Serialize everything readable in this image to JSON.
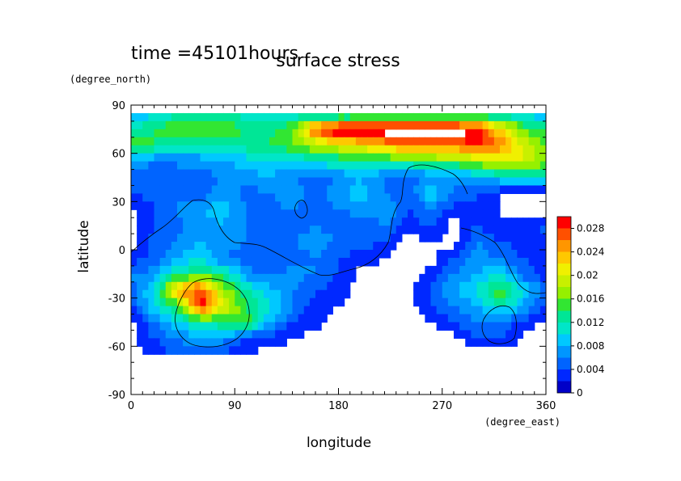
{
  "chart_data": {
    "type": "heatmap",
    "time_label": "time =45101hours",
    "title": "surface stress",
    "xlabel": "longitude",
    "ylabel": "latitude",
    "x_unit": "(degree_east)",
    "y_unit": "(degree_north)",
    "xlim": [
      0,
      360
    ],
    "ylim": [
      -90,
      90
    ],
    "x_ticks": [
      0,
      90,
      180,
      270,
      360
    ],
    "y_ticks": [
      -90,
      -60,
      -30,
      0,
      30,
      60,
      90
    ],
    "colorbar": {
      "range": [
        0,
        0.03
      ],
      "tick_values": [
        0,
        0.004,
        0.008,
        0.012,
        0.016,
        0.02,
        0.024,
        0.028
      ],
      "tick_labels": [
        "0",
        "0.004",
        "0.008",
        "0.012",
        "0.016",
        "0.02",
        "0.024",
        "0.028"
      ],
      "colors": [
        "#0000c8",
        "#0028ff",
        "#0064ff",
        "#0096ff",
        "#00c8ff",
        "#00e6c8",
        "#00e696",
        "#32e632",
        "#96f000",
        "#c8f000",
        "#f0f000",
        "#ffc800",
        "#ff9600",
        "#ff5000",
        "#ff0000"
      ]
    },
    "lat": [
      85,
      75,
      65,
      55,
      45,
      35,
      25,
      15,
      5,
      -5,
      -15,
      -25,
      -35,
      -45,
      -55,
      -65
    ],
    "lon": [
      0,
      20,
      40,
      60,
      80,
      100,
      120,
      140,
      160,
      180,
      200,
      220,
      240,
      260,
      280,
      300,
      320,
      340,
      360
    ],
    "values": [
      [
        0.007,
        0.01,
        0.011,
        0.012,
        0.012,
        0.011,
        0.01,
        0.01,
        0.009,
        0.008,
        0.008,
        0.009,
        0.009,
        0.01,
        0.01,
        0.01,
        0.01,
        0.009,
        0.008
      ],
      [
        0.012,
        0.014,
        0.016,
        0.017,
        0.016,
        0.014,
        0.013,
        0.016,
        0.028,
        0.032,
        0.032,
        0.032,
        0.032,
        0.032,
        0.032,
        0.03,
        0.022,
        0.016,
        0.013
      ],
      [
        0.016,
        0.014,
        0.012,
        0.011,
        0.012,
        0.013,
        0.014,
        0.016,
        0.018,
        0.02,
        0.022,
        0.024,
        0.026,
        0.026,
        0.026,
        0.028,
        0.026,
        0.02,
        0.016
      ],
      [
        0.008,
        0.006,
        0.006,
        0.007,
        0.008,
        0.009,
        0.01,
        0.01,
        0.011,
        0.012,
        0.012,
        0.013,
        0.014,
        0.015,
        0.016,
        0.018,
        0.02,
        0.02,
        0.016
      ],
      [
        0.005,
        0.005,
        0.006,
        0.005,
        0.006,
        0.007,
        0.008,
        0.006,
        0.005,
        0.006,
        0.008,
        0.006,
        0.005,
        0.006,
        0.006,
        0.008,
        0.01,
        0.012,
        0.012
      ],
      [
        0.004,
        0.005,
        0.006,
        0.004,
        0.008,
        0.005,
        0.006,
        0.008,
        0.004,
        0.008,
        0.009,
        0.006,
        0.004,
        0.01,
        0.006,
        0.004,
        0.002,
        0.001,
        0.001
      ],
      [
        0.001,
        0.004,
        0.006,
        0.008,
        0.009,
        0.006,
        0.005,
        0.006,
        0.005,
        0.006,
        0.007,
        0.008,
        0.004,
        0.006,
        0.003,
        0.004,
        0.002,
        0.001,
        0.001
      ],
      [
        0.001,
        0.004,
        0.005,
        0.007,
        0.008,
        0.006,
        0.004,
        0.005,
        0.006,
        0.005,
        0.004,
        0.006,
        0.002,
        0.005,
        0.001,
        0.004,
        0.002,
        0.003,
        0.005
      ],
      [
        0.001,
        0.005,
        0.006,
        0.008,
        0.007,
        0.006,
        0.004,
        0.006,
        0.007,
        0.006,
        0.005,
        0.004,
        0.001,
        0.002,
        0.001,
        0.006,
        0.004,
        0.003,
        0.002
      ],
      [
        0.003,
        0.004,
        0.008,
        0.01,
        0.006,
        0.005,
        0.004,
        0.005,
        0.006,
        0.004,
        0.003,
        0.002,
        0.001,
        0.001,
        0.004,
        0.007,
        0.006,
        0.004,
        0.003
      ],
      [
        0.006,
        0.007,
        0.012,
        0.014,
        0.012,
        0.007,
        0.005,
        0.007,
        0.006,
        0.004,
        0.001,
        0.001,
        0.001,
        0.003,
        0.006,
        0.008,
        0.01,
        0.005,
        0.003
      ],
      [
        0.005,
        0.01,
        0.024,
        0.028,
        0.018,
        0.012,
        0.009,
        0.006,
        0.004,
        0.003,
        0.001,
        0.001,
        0.001,
        0.004,
        0.008,
        0.01,
        0.016,
        0.01,
        0.005
      ],
      [
        0.004,
        0.01,
        0.014,
        0.03,
        0.02,
        0.014,
        0.01,
        0.006,
        0.003,
        0.002,
        0.001,
        0.001,
        0.001,
        0.004,
        0.006,
        0.008,
        0.012,
        0.008,
        0.004
      ],
      [
        0.001,
        0.006,
        0.01,
        0.012,
        0.014,
        0.016,
        0.008,
        0.004,
        0.003,
        0.001,
        0.001,
        0.001,
        0.001,
        0.002,
        0.004,
        0.006,
        0.005,
        0.004,
        0.001
      ],
      [
        0.001,
        0.004,
        0.006,
        0.008,
        0.007,
        0.004,
        0.003,
        0.002,
        0.001,
        0.001,
        0.001,
        0.001,
        0.001,
        0.001,
        0.001,
        0.004,
        0.005,
        0.001,
        0.001
      ],
      [
        0.001,
        0.003,
        0.004,
        0.005,
        0.004,
        0.002,
        0.001,
        0.001,
        0.001,
        0.001,
        0.001,
        0.001,
        0.001,
        0.001,
        0.001,
        0.001,
        0.001,
        0.001,
        0.001
      ]
    ]
  }
}
